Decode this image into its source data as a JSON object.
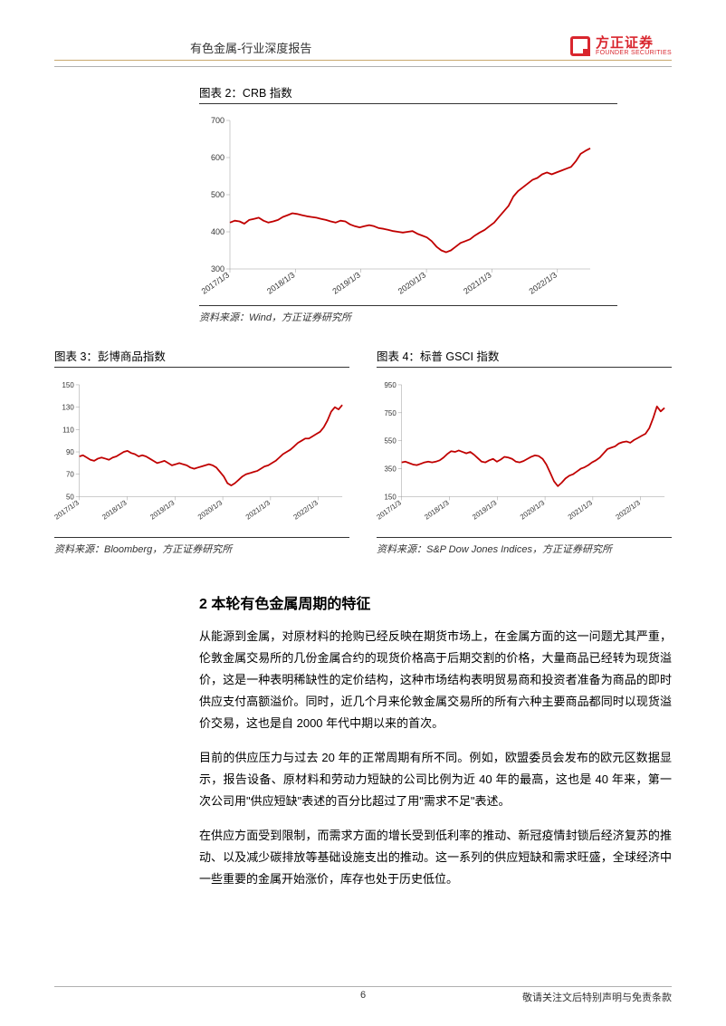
{
  "header": {
    "title": "有色金属-行业深度报告",
    "brand_cn": "方正证券",
    "brand_en": "FOUNDER SECURITIES",
    "brand_color": "#d9262e"
  },
  "chart2": {
    "title": "图表 2：CRB 指数",
    "source": "资料来源：Wind，方正证券研究所",
    "type": "line",
    "xlabels": [
      "2017/1/3",
      "2018/1/3",
      "2019/1/3",
      "2020/1/3",
      "2021/1/3",
      "2022/1/3"
    ],
    "ylim": [
      300,
      700
    ],
    "ytick_step": 100,
    "series_color": "#c00000",
    "background_color": "#ffffff",
    "line_width": 1.8,
    "values": [
      425,
      430,
      428,
      422,
      432,
      435,
      438,
      430,
      425,
      428,
      432,
      440,
      445,
      450,
      448,
      445,
      442,
      440,
      438,
      435,
      432,
      428,
      425,
      430,
      428,
      420,
      415,
      412,
      415,
      418,
      415,
      410,
      408,
      405,
      402,
      400,
      398,
      400,
      402,
      395,
      390,
      385,
      375,
      360,
      350,
      345,
      350,
      360,
      370,
      375,
      380,
      390,
      398,
      405,
      415,
      425,
      440,
      455,
      470,
      495,
      510,
      520,
      530,
      540,
      545,
      555,
      560,
      555,
      560,
      565,
      570,
      575,
      590,
      610,
      618,
      625
    ]
  },
  "chart3": {
    "title": "图表 3：彭博商品指数",
    "source": "资料来源：Bloomberg，方正证券研究所",
    "type": "line",
    "xlabels": [
      "2017/1/3",
      "2018/1/3",
      "2019/1/3",
      "2020/1/3",
      "2021/1/3",
      "2022/1/3"
    ],
    "ylim": [
      50,
      150
    ],
    "ytick_step": 20,
    "series_color": "#c00000",
    "background_color": "#ffffff",
    "line_width": 1.8,
    "values": [
      86,
      87,
      85,
      83,
      82,
      84,
      85,
      84,
      83,
      85,
      86,
      88,
      90,
      91,
      89,
      88,
      86,
      87,
      86,
      84,
      82,
      80,
      81,
      82,
      80,
      78,
      79,
      80,
      79,
      78,
      76,
      75,
      76,
      77,
      78,
      79,
      78,
      76,
      72,
      68,
      62,
      60,
      62,
      65,
      68,
      70,
      71,
      72,
      73,
      75,
      77,
      78,
      80,
      82,
      85,
      88,
      90,
      92,
      95,
      98,
      100,
      102,
      102,
      104,
      106,
      108,
      112,
      118,
      126,
      130,
      128,
      132
    ]
  },
  "chart4": {
    "title": "图表 4：标普 GSCI 指数",
    "source": "资料来源：S&P Dow Jones Indices，方正证券研究所",
    "type": "line",
    "xlabels": [
      "2017/1/3",
      "2018/1/3",
      "2019/1/3",
      "2020/1/3",
      "2021/1/3",
      "2022/1/3"
    ],
    "ylim": [
      150,
      950
    ],
    "ytick_step": 200,
    "series_color": "#c00000",
    "background_color": "#ffffff",
    "line_width": 1.8,
    "values": [
      395,
      400,
      390,
      380,
      375,
      385,
      395,
      400,
      395,
      400,
      410,
      430,
      455,
      475,
      470,
      480,
      470,
      460,
      470,
      450,
      425,
      400,
      395,
      410,
      420,
      400,
      415,
      435,
      430,
      420,
      400,
      395,
      405,
      420,
      435,
      445,
      440,
      420,
      380,
      320,
      260,
      225,
      250,
      280,
      300,
      310,
      330,
      350,
      360,
      375,
      395,
      410,
      430,
      460,
      490,
      500,
      510,
      530,
      540,
      545,
      535,
      555,
      570,
      585,
      600,
      640,
      710,
      795,
      760,
      785
    ]
  },
  "section": {
    "heading": "2 本轮有色金属周期的特征",
    "p1": "从能源到金属，对原材料的抢购已经反映在期货市场上，在金属方面的这一问题尤其严重，伦敦金属交易所的几份金属合约的现货价格高于后期交割的价格，大量商品已经转为现货溢价，这是一种表明稀缺性的定价结构，这种市场结构表明贸易商和投资者准备为商品的即时供应支付高额溢价。同时，近几个月来伦敦金属交易所的所有六种主要商品都同时以现货溢价交易，这也是自 2000 年代中期以来的首次。",
    "p2": "目前的供应压力与过去 20 年的正常周期有所不同。例如，欧盟委员会发布的欧元区数据显示，报告设备、原材料和劳动力短缺的公司比例为近 40 年的最高，这也是 40 年来，第一次公司用\"供应短缺\"表述的百分比超过了用\"需求不足\"表述。",
    "p3": "在供应方面受到限制，而需求方面的增长受到低利率的推动、新冠疫情封锁后经济复苏的推动、以及减少碳排放等基础设施支出的推动。这一系列的供应短缺和需求旺盛，全球经济中一些重要的金属开始涨价，库存也处于历史低位。"
  },
  "footer": {
    "page": "6",
    "right": "敬请关注文后特别声明与免责条款"
  }
}
